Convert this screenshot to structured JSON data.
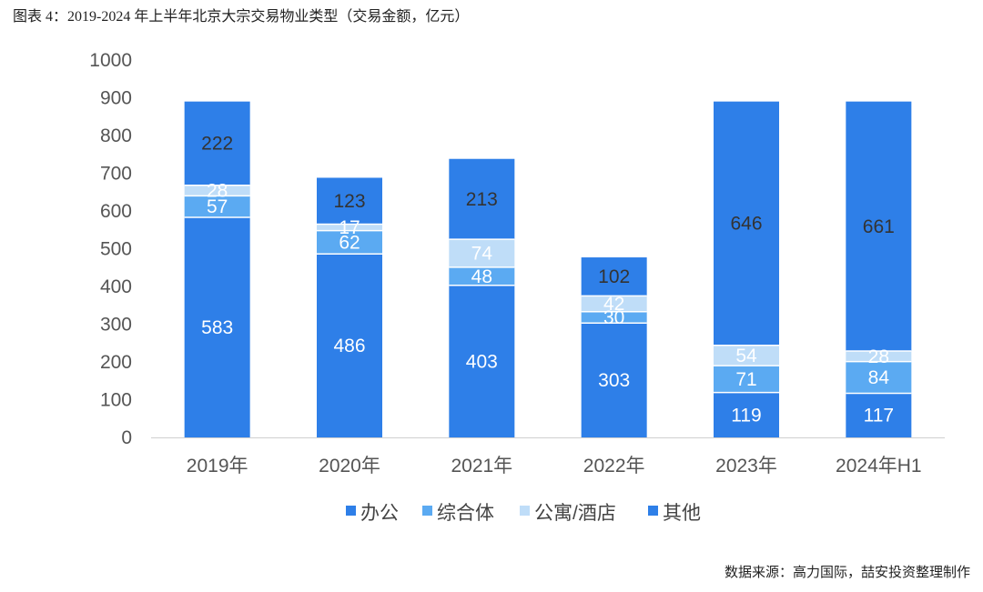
{
  "title": "图表 4：2019-2024 年上半年北京大宗交易物业类型（交易金额，亿元）",
  "source": "数据来源：高力国际，喆安投资整理制作",
  "chart_data": {
    "type": "bar",
    "stacked": true,
    "categories": [
      "2019年",
      "2020年",
      "2021年",
      "2022年",
      "2023年",
      "2024年H1"
    ],
    "series": [
      {
        "name": "办公",
        "color": "#2E7FE8",
        "label_color": "#ffffff",
        "values": [
          583,
          486,
          403,
          303,
          119,
          117
        ]
      },
      {
        "name": "综合体",
        "color": "#5BAAF2",
        "label_color": "#ffffff",
        "values": [
          57,
          62,
          48,
          30,
          71,
          84
        ]
      },
      {
        "name": "公寓/酒店",
        "color": "#BFDDF8",
        "label_color": "#ffffff",
        "values": [
          28,
          17,
          74,
          42,
          54,
          28
        ]
      },
      {
        "name": "其他",
        "color": "#2E7FE8",
        "label_color": "#333333",
        "values": [
          222,
          123,
          213,
          102,
          646,
          661
        ]
      }
    ],
    "ylim": [
      0,
      1000
    ],
    "yticks": [
      0,
      100,
      200,
      300,
      400,
      500,
      600,
      700,
      800,
      900,
      1000
    ],
    "xlabel": "",
    "ylabel": "",
    "grid": false,
    "legend": "bottom"
  }
}
